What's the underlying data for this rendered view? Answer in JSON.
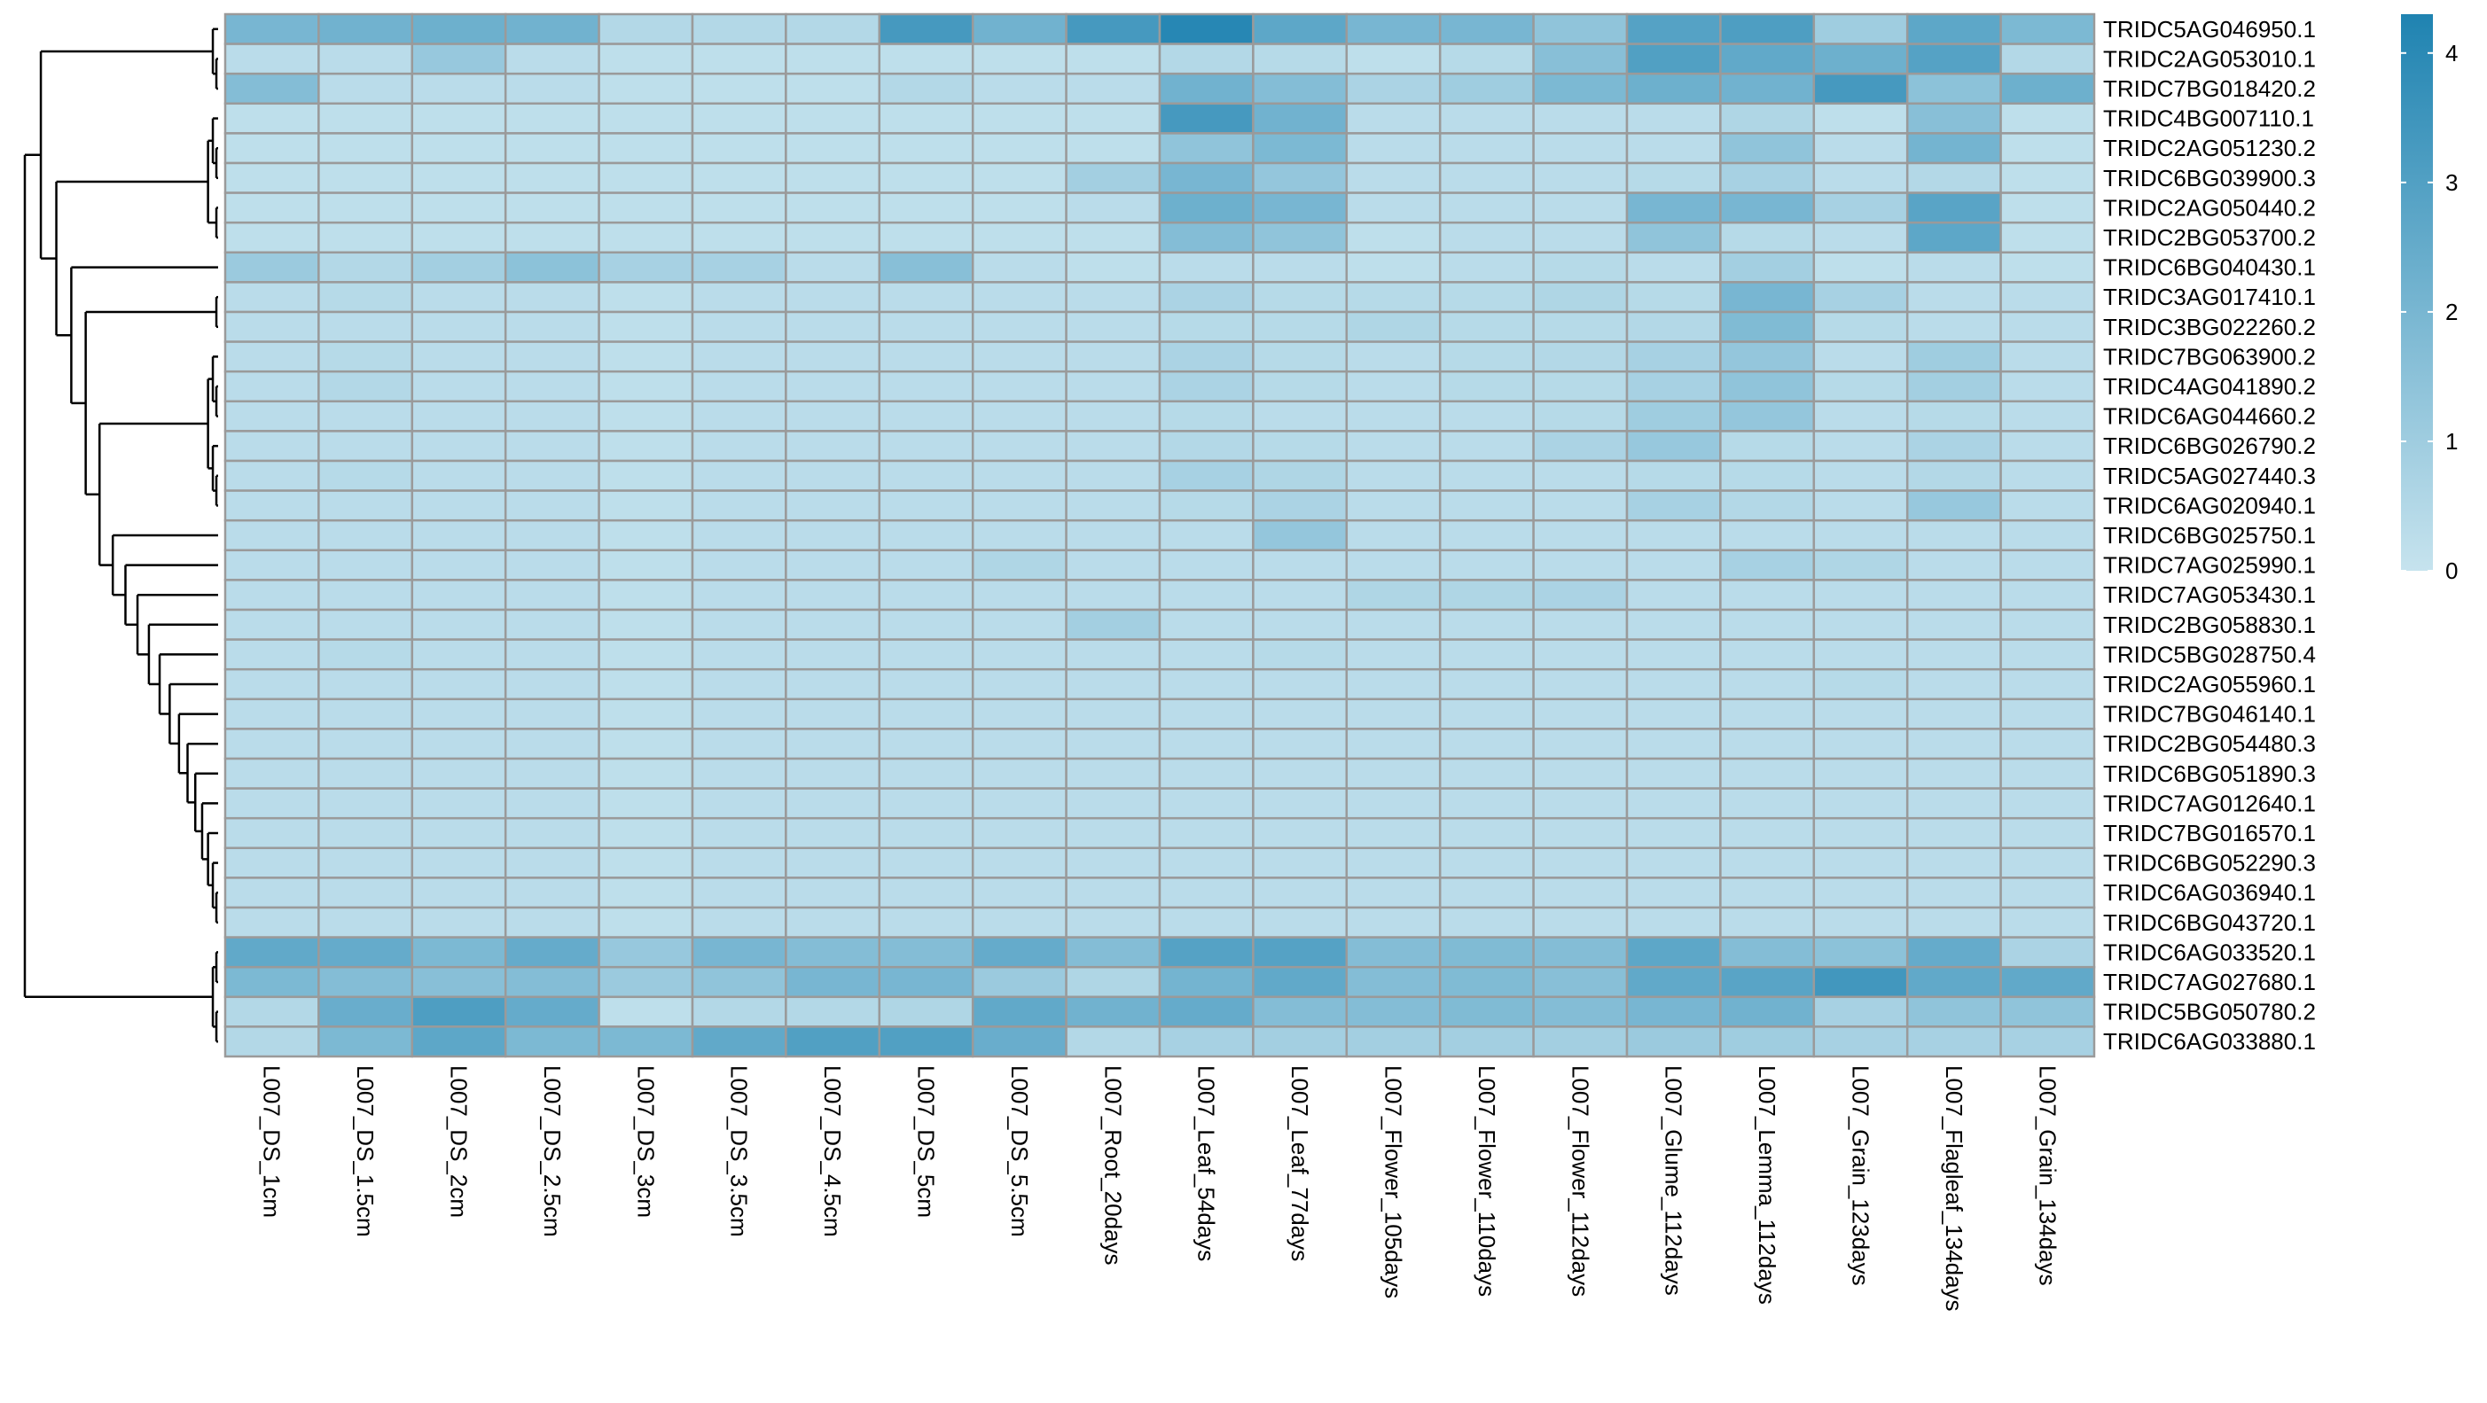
{
  "chart_data": {
    "type": "heatmap",
    "title": "",
    "xlabel": "",
    "ylabel": "",
    "columns": [
      "L007_DS_1cm",
      "L007_DS_1.5cm",
      "L007_DS_2cm",
      "L007_DS_2.5cm",
      "L007_DS_3cm",
      "L007_DS_3.5cm",
      "L007_DS_4.5cm",
      "L007_DS_5cm",
      "L007_DS_5.5cm",
      "L007_Root_20days",
      "L007_Leaf_54days",
      "L007_Leaf_77days",
      "L007_Flower_105days",
      "L007_Flower_110days",
      "L007_Flower_112days",
      "L007_Glume_112days",
      "L007_Lemma_112days",
      "L007_Grain_123days",
      "L007_Flagleaf_134days",
      "L007_Grain_134days"
    ],
    "rows": [
      "TRIDC5AG046950.1",
      "TRIDC2AG053010.1",
      "TRIDC7BG018420.2",
      "TRIDC4BG007110.1",
      "TRIDC2AG051230.2",
      "TRIDC6BG039900.3",
      "TRIDC2AG050440.2",
      "TRIDC2BG053700.2",
      "TRIDC6BG040430.1",
      "TRIDC3AG017410.1",
      "TRIDC3BG022260.2",
      "TRIDC7BG063900.2",
      "TRIDC4AG041890.2",
      "TRIDC6AG044660.2",
      "TRIDC6BG026790.2",
      "TRIDC5AG027440.3",
      "TRIDC6AG020940.1",
      "TRIDC6BG025750.1",
      "TRIDC7AG025990.1",
      "TRIDC7AG053430.1",
      "TRIDC2BG058830.1",
      "TRIDC5BG028750.4",
      "TRIDC2AG055960.1",
      "TRIDC7BG046140.1",
      "TRIDC2BG054480.3",
      "TRIDC6BG051890.3",
      "TRIDC7AG012640.1",
      "TRIDC7BG016570.1",
      "TRIDC6BG052290.3",
      "TRIDC6AG036940.1",
      "TRIDC6BG043720.1",
      "TRIDC6AG033520.1",
      "TRIDC7AG027680.1",
      "TRIDC5BG050780.2",
      "TRIDC6AG033880.1"
    ],
    "values": [
      [
        2.0,
        2.2,
        2.3,
        2.2,
        0.5,
        0.5,
        0.5,
        3.3,
        2.2,
        3.3,
        4.1,
        2.7,
        2.0,
        2.0,
        1.4,
        2.9,
        3.1,
        1.0,
        2.7,
        1.9
      ],
      [
        0.3,
        0.3,
        1.2,
        0.3,
        0.2,
        0.2,
        0.2,
        0.2,
        0.2,
        0.2,
        0.5,
        0.4,
        0.2,
        0.4,
        1.6,
        3.0,
        2.6,
        2.3,
        2.9,
        0.5
      ],
      [
        1.7,
        0.3,
        0.3,
        0.3,
        0.2,
        0.2,
        0.2,
        0.5,
        0.3,
        0.3,
        2.2,
        1.7,
        0.7,
        1.0,
        1.9,
        2.3,
        2.2,
        3.3,
        1.5,
        2.3
      ],
      [
        0.2,
        0.2,
        0.2,
        0.2,
        0.2,
        0.2,
        0.2,
        0.2,
        0.2,
        0.2,
        3.3,
        2.2,
        0.3,
        0.3,
        0.3,
        0.3,
        0.6,
        0.2,
        1.6,
        0.2
      ],
      [
        0.2,
        0.2,
        0.2,
        0.2,
        0.2,
        0.2,
        0.2,
        0.2,
        0.2,
        0.2,
        1.4,
        1.9,
        0.3,
        0.3,
        0.3,
        0.3,
        1.4,
        0.3,
        2.1,
        0.2
      ],
      [
        0.2,
        0.2,
        0.2,
        0.2,
        0.2,
        0.2,
        0.2,
        0.2,
        0.2,
        0.9,
        2.0,
        1.3,
        0.3,
        0.3,
        0.3,
        0.4,
        0.8,
        0.3,
        0.5,
        0.2
      ],
      [
        0.2,
        0.2,
        0.2,
        0.2,
        0.2,
        0.2,
        0.2,
        0.2,
        0.2,
        0.3,
        2.3,
        2.0,
        0.3,
        0.3,
        0.3,
        2.0,
        2.0,
        0.8,
        2.8,
        0.2
      ],
      [
        0.2,
        0.2,
        0.2,
        0.2,
        0.2,
        0.2,
        0.2,
        0.2,
        0.2,
        0.2,
        1.7,
        1.4,
        0.2,
        0.3,
        0.3,
        1.4,
        0.4,
        0.3,
        2.7,
        0.2
      ],
      [
        1.1,
        0.5,
        0.9,
        1.5,
        0.8,
        0.8,
        0.3,
        1.6,
        0.3,
        0.2,
        0.3,
        0.3,
        0.2,
        0.3,
        0.4,
        0.3,
        0.9,
        0.2,
        0.3,
        0.2
      ],
      [
        0.3,
        0.4,
        0.3,
        0.3,
        0.2,
        0.3,
        0.3,
        0.3,
        0.3,
        0.3,
        0.7,
        0.4,
        0.4,
        0.4,
        0.6,
        0.4,
        2.0,
        0.8,
        0.3,
        0.3
      ],
      [
        0.3,
        0.3,
        0.3,
        0.3,
        0.2,
        0.3,
        0.3,
        0.3,
        0.3,
        0.3,
        0.4,
        0.4,
        0.6,
        0.4,
        0.4,
        0.5,
        1.8,
        0.4,
        0.3,
        0.3
      ],
      [
        0.3,
        0.4,
        0.3,
        0.3,
        0.2,
        0.3,
        0.3,
        0.3,
        0.3,
        0.3,
        0.7,
        0.4,
        0.3,
        0.4,
        0.5,
        0.8,
        1.3,
        0.3,
        1.0,
        0.3
      ],
      [
        0.3,
        0.5,
        0.3,
        0.3,
        0.2,
        0.3,
        0.3,
        0.3,
        0.3,
        0.3,
        0.7,
        0.4,
        0.3,
        0.4,
        0.4,
        0.8,
        1.4,
        0.4,
        0.9,
        0.3
      ],
      [
        0.3,
        0.3,
        0.3,
        0.3,
        0.2,
        0.3,
        0.3,
        0.3,
        0.3,
        0.3,
        0.4,
        0.3,
        0.3,
        0.3,
        0.4,
        1.0,
        1.3,
        0.3,
        0.4,
        0.3
      ],
      [
        0.3,
        0.3,
        0.3,
        0.3,
        0.2,
        0.3,
        0.3,
        0.3,
        0.3,
        0.3,
        0.5,
        0.4,
        0.3,
        0.3,
        0.7,
        1.2,
        0.4,
        0.3,
        0.7,
        0.3
      ],
      [
        0.3,
        0.4,
        0.3,
        0.3,
        0.2,
        0.3,
        0.3,
        0.3,
        0.3,
        0.3,
        0.8,
        0.6,
        0.3,
        0.3,
        0.3,
        0.4,
        0.4,
        0.3,
        0.5,
        0.3
      ],
      [
        0.3,
        0.3,
        0.3,
        0.3,
        0.2,
        0.3,
        0.3,
        0.3,
        0.3,
        0.3,
        0.4,
        0.7,
        0.3,
        0.3,
        0.3,
        0.8,
        0.5,
        0.3,
        1.2,
        0.3
      ],
      [
        0.3,
        0.3,
        0.3,
        0.3,
        0.2,
        0.3,
        0.3,
        0.3,
        0.3,
        0.3,
        0.3,
        1.3,
        0.3,
        0.3,
        0.3,
        0.3,
        0.3,
        0.3,
        0.3,
        0.3
      ],
      [
        0.3,
        0.3,
        0.3,
        0.3,
        0.2,
        0.3,
        0.3,
        0.3,
        0.6,
        0.3,
        0.3,
        0.3,
        0.3,
        0.3,
        0.3,
        0.3,
        0.8,
        0.6,
        0.3,
        0.3
      ],
      [
        0.3,
        0.3,
        0.3,
        0.3,
        0.2,
        0.3,
        0.3,
        0.3,
        0.3,
        0.3,
        0.3,
        0.3,
        0.6,
        0.6,
        0.7,
        0.3,
        0.3,
        0.3,
        0.3,
        0.3
      ],
      [
        0.3,
        0.3,
        0.3,
        0.3,
        0.2,
        0.3,
        0.3,
        0.3,
        0.3,
        0.9,
        0.3,
        0.3,
        0.3,
        0.3,
        0.3,
        0.3,
        0.3,
        0.3,
        0.3,
        0.3
      ],
      [
        0.3,
        0.4,
        0.3,
        0.3,
        0.2,
        0.3,
        0.3,
        0.3,
        0.3,
        0.3,
        0.3,
        0.4,
        0.3,
        0.3,
        0.3,
        0.3,
        0.3,
        0.3,
        0.3,
        0.3
      ],
      [
        0.3,
        0.3,
        0.3,
        0.3,
        0.2,
        0.3,
        0.3,
        0.3,
        0.3,
        0.3,
        0.3,
        0.3,
        0.3,
        0.3,
        0.3,
        0.3,
        0.3,
        0.4,
        0.3,
        0.3
      ],
      [
        0.3,
        0.3,
        0.3,
        0.3,
        0.2,
        0.3,
        0.3,
        0.3,
        0.3,
        0.3,
        0.3,
        0.3,
        0.3,
        0.3,
        0.3,
        0.3,
        0.3,
        0.3,
        0.3,
        0.3
      ],
      [
        0.3,
        0.3,
        0.3,
        0.3,
        0.2,
        0.3,
        0.3,
        0.3,
        0.3,
        0.3,
        0.3,
        0.3,
        0.3,
        0.3,
        0.3,
        0.3,
        0.3,
        0.3,
        0.3,
        0.3
      ],
      [
        0.3,
        0.3,
        0.3,
        0.3,
        0.2,
        0.3,
        0.3,
        0.3,
        0.3,
        0.3,
        0.3,
        0.3,
        0.3,
        0.3,
        0.3,
        0.3,
        0.3,
        0.3,
        0.3,
        0.3
      ],
      [
        0.3,
        0.3,
        0.3,
        0.3,
        0.2,
        0.3,
        0.3,
        0.3,
        0.3,
        0.3,
        0.3,
        0.3,
        0.3,
        0.3,
        0.3,
        0.3,
        0.3,
        0.3,
        0.3,
        0.3
      ],
      [
        0.3,
        0.3,
        0.3,
        0.3,
        0.2,
        0.3,
        0.3,
        0.3,
        0.3,
        0.3,
        0.3,
        0.3,
        0.3,
        0.3,
        0.3,
        0.3,
        0.3,
        0.3,
        0.3,
        0.3
      ],
      [
        0.3,
        0.3,
        0.3,
        0.3,
        0.2,
        0.3,
        0.3,
        0.3,
        0.3,
        0.3,
        0.3,
        0.3,
        0.3,
        0.3,
        0.3,
        0.3,
        0.3,
        0.3,
        0.3,
        0.3
      ],
      [
        0.3,
        0.3,
        0.3,
        0.3,
        0.2,
        0.3,
        0.3,
        0.3,
        0.3,
        0.3,
        0.3,
        0.3,
        0.3,
        0.3,
        0.3,
        0.3,
        0.3,
        0.3,
        0.3,
        0.3
      ],
      [
        0.3,
        0.3,
        0.3,
        0.3,
        0.2,
        0.3,
        0.3,
        0.3,
        0.3,
        0.3,
        0.3,
        0.3,
        0.3,
        0.3,
        0.3,
        0.3,
        0.3,
        0.3,
        0.3,
        0.3
      ],
      [
        2.6,
        2.5,
        1.9,
        2.5,
        1.2,
        2.0,
        1.7,
        1.7,
        2.5,
        1.7,
        2.9,
        2.9,
        1.7,
        1.8,
        1.7,
        2.7,
        1.7,
        1.5,
        2.5,
        0.7
      ],
      [
        1.9,
        1.7,
        1.6,
        1.7,
        1.1,
        1.4,
        2.0,
        2.0,
        1.1,
        0.6,
        2.1,
        2.6,
        1.7,
        1.8,
        1.6,
        2.6,
        2.8,
        3.4,
        2.6,
        2.6
      ],
      [
        0.5,
        2.4,
        3.1,
        2.5,
        0.2,
        0.5,
        0.5,
        0.6,
        2.6,
        2.2,
        2.5,
        1.7,
        1.7,
        1.8,
        1.7,
        2.0,
        2.2,
        0.8,
        1.4,
        1.4
      ],
      [
        0.5,
        1.9,
        2.7,
        1.9,
        1.9,
        2.6,
        3.0,
        3.0,
        2.4,
        0.5,
        0.8,
        0.9,
        0.9,
        0.9,
        0.9,
        1.1,
        1.0,
        0.8,
        0.8,
        0.8
      ]
    ],
    "scale": {
      "min": 0,
      "max": 4.3,
      "ticks": [
        0,
        1,
        2,
        3,
        4
      ],
      "low_color": "#c6e3ee",
      "high_color": "#1f83b1"
    },
    "cell_border_color": "#9a9a9a",
    "dendrogram": "rows"
  }
}
